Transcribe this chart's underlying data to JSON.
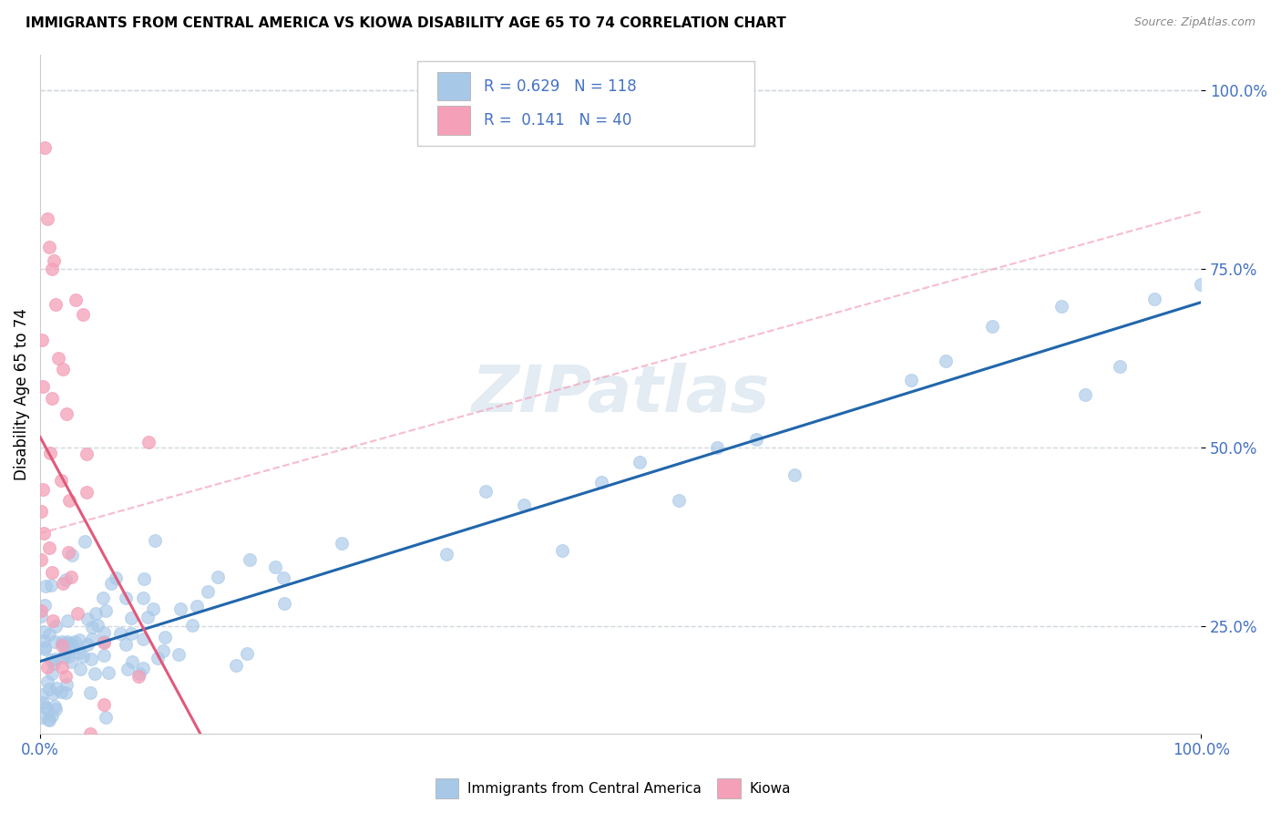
{
  "title": "IMMIGRANTS FROM CENTRAL AMERICA VS KIOWA DISABILITY AGE 65 TO 74 CORRELATION CHART",
  "source": "Source: ZipAtlas.com",
  "legend_label1": "Immigrants from Central America",
  "legend_label2": "Kiowa",
  "ylabel": "Disability Age 65 to 74",
  "R1": 0.629,
  "N1": 118,
  "R2": 0.141,
  "N2": 40,
  "blue_color": "#a8c8e8",
  "pink_color": "#f4a0b8",
  "blue_line_color": "#2166ac",
  "pink_line_color": "#e05a7a",
  "dashed_line_color": "#f4a0b8",
  "watermark_text": "ZIPatlas",
  "watermark_color": "#c8d8e8",
  "grid_color": "#d0d8e0",
  "ytick_color": "#4472c4",
  "xtick_color": "#4472c4"
}
